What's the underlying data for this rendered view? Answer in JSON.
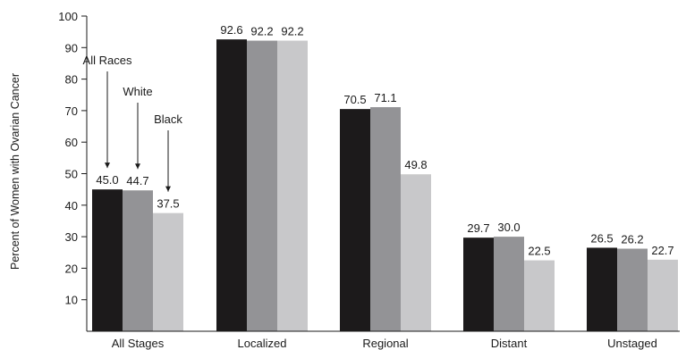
{
  "chart_data": {
    "type": "bar",
    "title": "",
    "xlabel": "",
    "ylabel": "Percent of Women with Ovarian Cancer",
    "ylim": [
      0,
      100
    ],
    "yticks": [
      10,
      20,
      30,
      40,
      50,
      60,
      70,
      80,
      90,
      100
    ],
    "grid": false,
    "legend": "none",
    "categories": [
      "All Stages",
      "Localized",
      "Regional",
      "Distant",
      "Unstaged"
    ],
    "series": [
      {
        "name": "All Races",
        "color": "#1c1a1b",
        "values": [
          45.0,
          92.6,
          70.5,
          29.7,
          26.5
        ]
      },
      {
        "name": "White",
        "color": "#939396",
        "values": [
          44.7,
          92.2,
          71.1,
          30.0,
          26.2
        ]
      },
      {
        "name": "Black",
        "color": "#c8c8ca",
        "values": [
          37.5,
          92.2,
          49.8,
          22.5,
          22.7
        ]
      }
    ],
    "data_labels": [
      [
        "45.0",
        "92.6",
        "70.5",
        "29.7",
        "26.5"
      ],
      [
        "44.7",
        "92.2",
        "71.1",
        "30.0",
        "26.2"
      ],
      [
        "37.5",
        "92.2",
        "49.8",
        "22.5",
        "22.7"
      ]
    ],
    "annotations": [
      {
        "text": "All Races",
        "series_index": 0,
        "category_index": 0
      },
      {
        "text": "White",
        "series_index": 1,
        "category_index": 0
      },
      {
        "text": "Black",
        "series_index": 2,
        "category_index": 0
      }
    ]
  }
}
